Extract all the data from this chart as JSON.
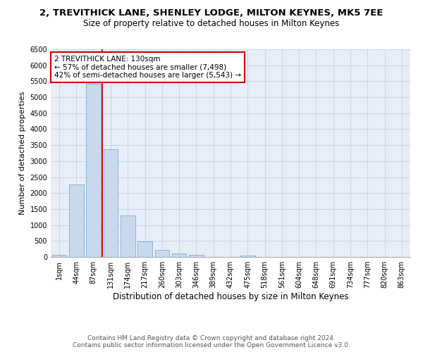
{
  "title_line1": "2, TREVITHICK LANE, SHENLEY LODGE, MILTON KEYNES, MK5 7EE",
  "title_line2": "Size of property relative to detached houses in Milton Keynes",
  "xlabel": "Distribution of detached houses by size in Milton Keynes",
  "ylabel": "Number of detached properties",
  "footer_line1": "Contains HM Land Registry data © Crown copyright and database right 2024.",
  "footer_line2": "Contains public sector information licensed under the Open Government Licence v3.0.",
  "bar_labels": [
    "1sqm",
    "44sqm",
    "87sqm",
    "131sqm",
    "174sqm",
    "217sqm",
    "260sqm",
    "303sqm",
    "346sqm",
    "389sqm",
    "432sqm",
    "475sqm",
    "518sqm",
    "561sqm",
    "604sqm",
    "648sqm",
    "691sqm",
    "734sqm",
    "777sqm",
    "820sqm",
    "863sqm"
  ],
  "bar_values": [
    70,
    2270,
    5430,
    3380,
    1310,
    480,
    215,
    100,
    60,
    0,
    0,
    55,
    0,
    0,
    0,
    0,
    0,
    0,
    0,
    0,
    0
  ],
  "bar_color": "#c8d9ee",
  "bar_edge_color": "#7aadd4",
  "vline_x": 2.5,
  "annotation_text": "2 TREVITHICK LANE: 130sqm\n← 57% of detached houses are smaller (7,498)\n42% of semi-detached houses are larger (5,543) →",
  "annotation_box_facecolor": "#ffffff",
  "annotation_box_edgecolor": "#cc0000",
  "vline_color": "#cc0000",
  "ylim": [
    0,
    6500
  ],
  "yticks": [
    0,
    500,
    1000,
    1500,
    2000,
    2500,
    3000,
    3500,
    4000,
    4500,
    5000,
    5500,
    6000,
    6500
  ],
  "grid_color": "#c8d4e8",
  "background_color": "#e8eef8",
  "title1_fontsize": 9.5,
  "title2_fontsize": 8.5,
  "xlabel_fontsize": 8.5,
  "ylabel_fontsize": 8,
  "tick_fontsize": 7,
  "annot_fontsize": 7.5,
  "footer_fontsize": 6.5
}
